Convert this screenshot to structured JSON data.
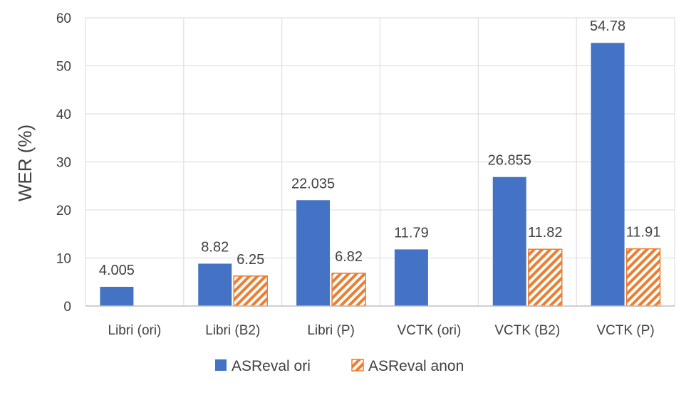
{
  "chart_data": {
    "type": "bar",
    "title": "",
    "xlabel": "",
    "ylabel": "WER (%)",
    "ylim": [
      0,
      60
    ],
    "yticks": [
      0,
      10,
      20,
      30,
      40,
      50,
      60
    ],
    "grid": true,
    "legend_position": "bottom",
    "categories": [
      "Libri (ori)",
      "Libri (B2)",
      "Libri (P)",
      "VCTK (ori)",
      "VCTK (B2)",
      "VCTK (P)"
    ],
    "series": [
      {
        "name": "ASReval ori",
        "style": "solid",
        "color": "#4472C4",
        "values": [
          4.005,
          8.82,
          22.035,
          11.79,
          26.855,
          54.78
        ],
        "labels": [
          "4.005",
          "8.82",
          "22.035",
          "11.79",
          "26.855",
          "54.78"
        ]
      },
      {
        "name": "ASReval anon",
        "style": "hatched",
        "color": "#ED7D31",
        "values": [
          null,
          6.25,
          6.82,
          null,
          11.82,
          11.91
        ],
        "labels": [
          "",
          "6.25",
          "6.82",
          "",
          "11.82",
          "11.91"
        ]
      }
    ]
  }
}
